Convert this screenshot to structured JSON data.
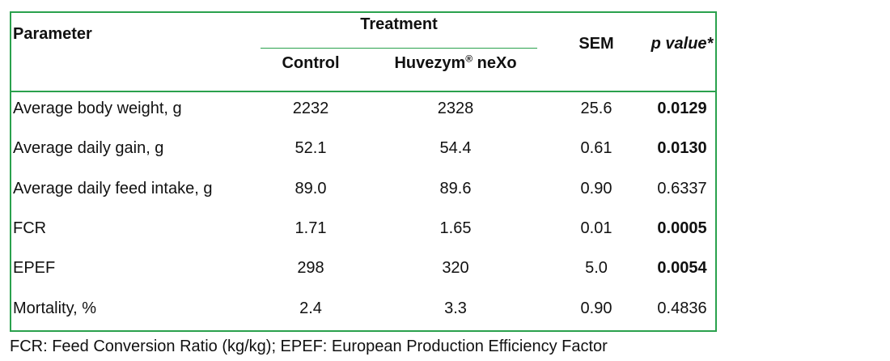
{
  "table": {
    "header": {
      "parameter": "Parameter",
      "treatment": "Treatment",
      "control": "Control",
      "huvezym_brand": "Huvezym",
      "huvezym_reg": "®",
      "huvezym_suffix": " neXo",
      "sem": "SEM",
      "p_value": "p value*"
    },
    "rows": [
      {
        "parameter": "Average body weight, g",
        "control": "2232",
        "huvezym": "2328",
        "sem": "25.6",
        "p_value": "0.0129",
        "p_bold": true
      },
      {
        "parameter": "Average daily gain, g",
        "control": "52.1",
        "huvezym": "54.4",
        "sem": "0.61",
        "p_value": "0.0130",
        "p_bold": true
      },
      {
        "parameter": "Average daily feed intake, g",
        "control": "89.0",
        "huvezym": "89.6",
        "sem": "0.90",
        "p_value": "0.6337",
        "p_bold": false
      },
      {
        "parameter": "FCR",
        "control": "1.71",
        "huvezym": "1.65",
        "sem": "0.01",
        "p_value": "0.0005",
        "p_bold": true
      },
      {
        "parameter": "EPEF",
        "control": "298",
        "huvezym": "320",
        "sem": "5.0",
        "p_value": "0.0054",
        "p_bold": true
      },
      {
        "parameter": "Mortality, %",
        "control": "2.4",
        "huvezym": "3.3",
        "sem": "0.90",
        "p_value": "0.4836",
        "p_bold": false
      }
    ]
  },
  "footnote": "FCR: Feed Conversion Ratio (kg/kg); EPEF: European Production Efficiency Factor",
  "colors": {
    "border_green": "#2aa14d",
    "text": "#111111",
    "background": "#ffffff"
  }
}
